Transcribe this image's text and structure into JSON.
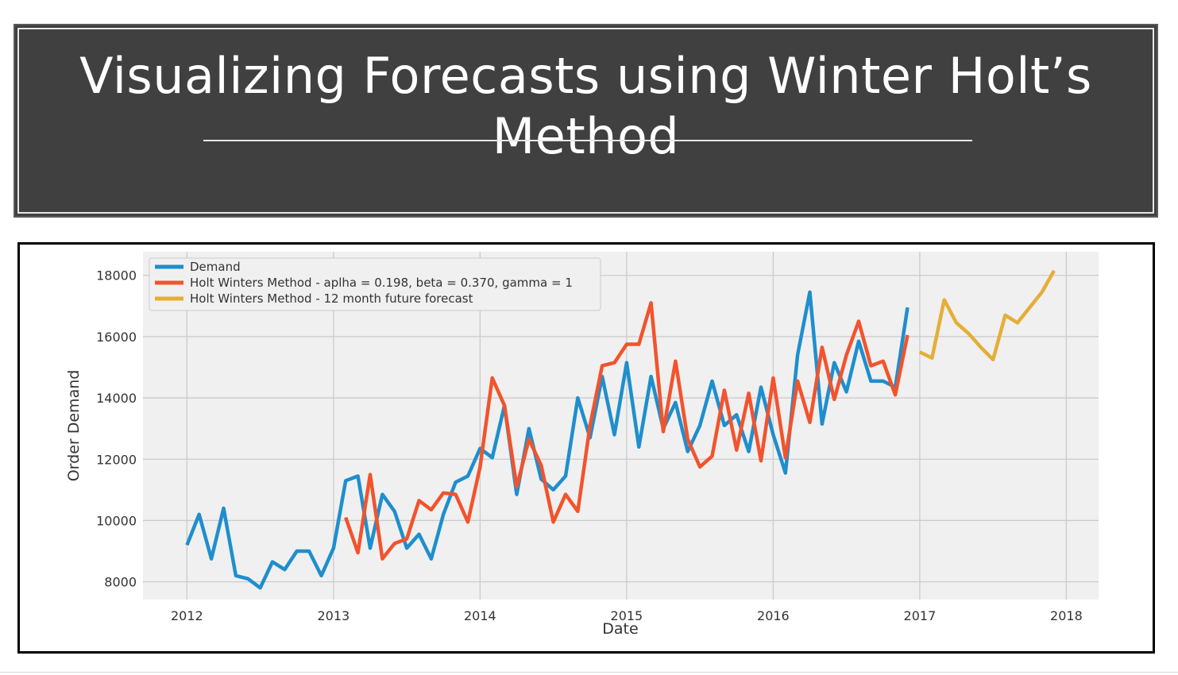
{
  "slide": {
    "title": "Visualizing Forecasts using Winter Holt’s Method"
  },
  "chart_data": {
    "type": "line",
    "title": "",
    "xlabel": "Date",
    "ylabel": "Order Demand",
    "xlim": [
      2011.7,
      2018.22
    ],
    "ylim": [
      7420,
      18770
    ],
    "x_ticks": [
      "2012",
      "2013",
      "2014",
      "2015",
      "2016",
      "2017",
      "2018"
    ],
    "y_ticks": [
      "8000",
      "10000",
      "12000",
      "14000",
      "16000",
      "18000"
    ],
    "grid": true,
    "legend_position": "top-left",
    "series": [
      {
        "name": "Demand",
        "color": "#1f8ecd",
        "x_start": "2012-01",
        "values": [
          9200,
          10200,
          8750,
          10400,
          8200,
          8100,
          7800,
          8650,
          8400,
          9000,
          9000,
          8200,
          9100,
          11300,
          11450,
          9100,
          10850,
          10300,
          9100,
          9550,
          8750,
          10200,
          11250,
          11450,
          12350,
          12050,
          13750,
          10850,
          13000,
          11350,
          11000,
          11450,
          14000,
          12700,
          14700,
          12800,
          15150,
          12400,
          14700,
          13000,
          13850,
          12250,
          13100,
          14550,
          13100,
          13450,
          12250,
          14350,
          12800,
          11550,
          15400,
          17450,
          13150,
          15150,
          14200,
          15850,
          14550,
          14550,
          14350,
          16950
        ]
      },
      {
        "name": "Holt Winters Method - aplha = 0.198, beta = 0.370, gamma = 1",
        "color": "#f2532d",
        "x_start": "2013-02",
        "values": [
          10100,
          8950,
          11500,
          8750,
          9250,
          9400,
          10650,
          10350,
          10900,
          10850,
          9950,
          11750,
          14650,
          13750,
          11100,
          12650,
          11800,
          9950,
          10850,
          10300,
          13100,
          15050,
          15150,
          15750,
          15750,
          17100,
          12900,
          15200,
          12650,
          11750,
          12100,
          14250,
          12300,
          14150,
          11950,
          14650,
          12050,
          14550,
          13200,
          15650,
          13950,
          15400,
          16500,
          15050,
          15200,
          14100,
          16050
        ]
      },
      {
        "name": "Holt Winters Method - 12 month future forecast",
        "color": "#e5ae38",
        "x_start": "2017-01",
        "values": [
          15500,
          15300,
          17200,
          16450,
          16100,
          15650,
          15250,
          16700,
          16450,
          16950,
          17450,
          18150
        ]
      }
    ]
  }
}
